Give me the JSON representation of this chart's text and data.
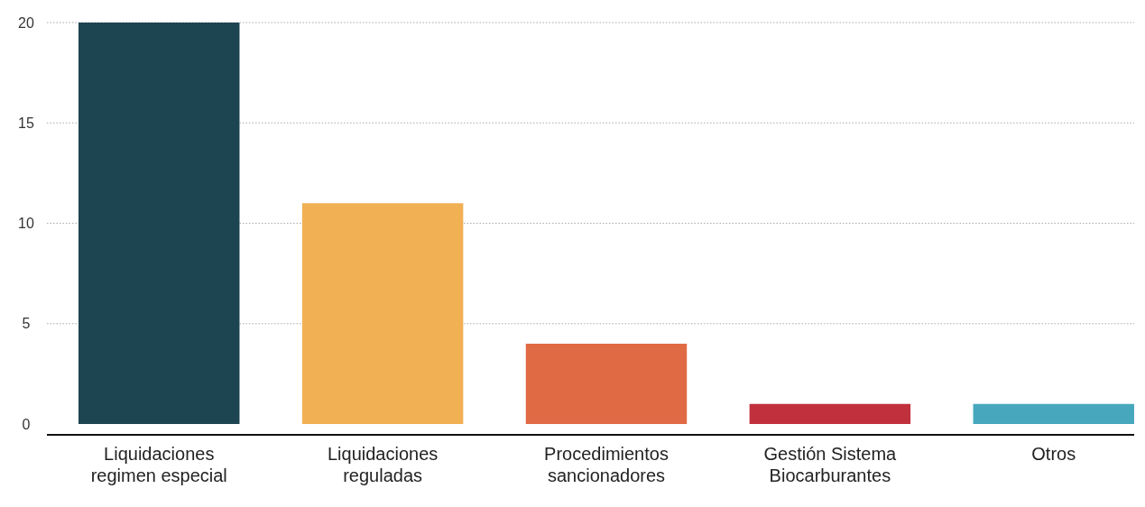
{
  "chart_data": {
    "type": "bar",
    "categories": [
      "Liquidaciones regimen especial",
      "Liquidaciones reguladas",
      "Procedimientos sancionadores",
      "Gestión Sistema Biocarburantes",
      "Otros"
    ],
    "values": [
      20,
      11,
      4,
      1,
      1
    ],
    "colors": [
      "#1d4451",
      "#f0b053",
      "#e06a44",
      "#c0313d",
      "#47a8bd"
    ],
    "ylim": [
      0,
      20
    ],
    "yticks": [
      0,
      5,
      10,
      15,
      20
    ],
    "grid": "y"
  }
}
